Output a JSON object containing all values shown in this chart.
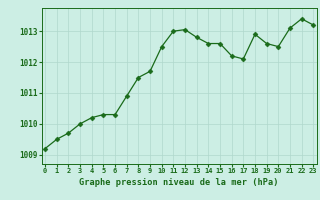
{
  "x": [
    0,
    1,
    2,
    3,
    4,
    5,
    6,
    7,
    8,
    9,
    10,
    11,
    12,
    13,
    14,
    15,
    16,
    17,
    18,
    19,
    20,
    21,
    22,
    23
  ],
  "y": [
    1009.2,
    1009.5,
    1009.7,
    1010.0,
    1010.2,
    1010.3,
    1010.3,
    1010.9,
    1011.5,
    1011.7,
    1012.5,
    1013.0,
    1013.05,
    1012.8,
    1012.6,
    1012.6,
    1012.2,
    1012.1,
    1012.9,
    1012.6,
    1012.5,
    1013.1,
    1013.4,
    1013.2
  ],
  "line_color": "#1a6b1a",
  "marker": "D",
  "marker_size": 2.5,
  "bg_color": "#cceee4",
  "grid_color": "#b0d8cc",
  "xlabel": "Graphe pression niveau de la mer (hPa)",
  "xlabel_color": "#1a6b1a",
  "tick_color": "#1a6b1a",
  "ylim": [
    1008.7,
    1013.75
  ],
  "xlim": [
    -0.3,
    23.3
  ],
  "yticks": [
    1009,
    1010,
    1011,
    1012,
    1013
  ],
  "xticks": [
    0,
    1,
    2,
    3,
    4,
    5,
    6,
    7,
    8,
    9,
    10,
    11,
    12,
    13,
    14,
    15,
    16,
    17,
    18,
    19,
    20,
    21,
    22,
    23
  ],
  "xtick_labels": [
    "0",
    "1",
    "2",
    "3",
    "4",
    "5",
    "6",
    "7",
    "8",
    "9",
    "10",
    "11",
    "12",
    "13",
    "14",
    "15",
    "16",
    "17",
    "18",
    "19",
    "20",
    "21",
    "22",
    "23"
  ],
  "tick_fontsize": 5.0,
  "xlabel_fontsize": 6.2,
  "linewidth": 0.9
}
